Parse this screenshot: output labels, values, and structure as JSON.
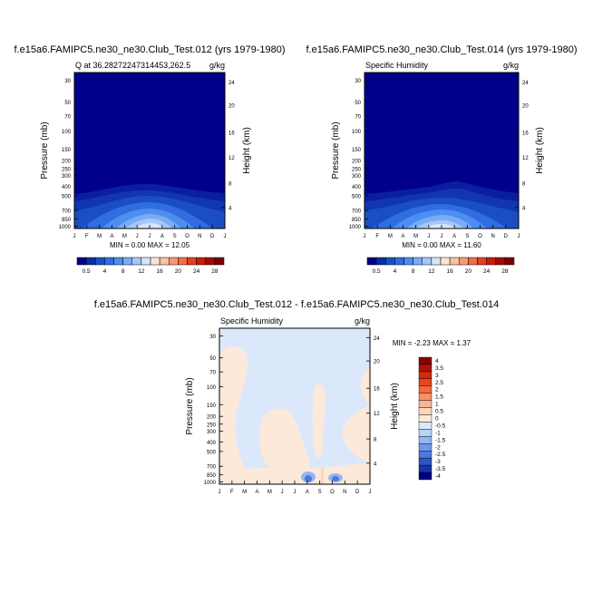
{
  "chart_data": [
    {
      "type": "heatmap",
      "title": "f.e15a6.FAMIPC5.ne30_ne30.Club_Test.012 (yrs 1979-1980)",
      "subtitle_left": "Q at 36.28272247314453,262.5",
      "subtitle_right": "g/kg",
      "ylabel": "Pressure (mb)",
      "ylabel_right": "Height (km)",
      "x_ticks": [
        "J",
        "F",
        "M",
        "A",
        "M",
        "J",
        "J",
        "A",
        "S",
        "O",
        "N",
        "D",
        "J"
      ],
      "y_ticks": [
        "30",
        "50",
        "70",
        "100",
        "150",
        "200",
        "250",
        "300",
        "400",
        "500",
        "700",
        "850",
        "1000"
      ],
      "y_ticks_right": [
        "24",
        "20",
        "16",
        "12",
        "8",
        "4"
      ],
      "stats": "MIN =   0.00 MAX =  12.05",
      "colorbar": {
        "labels": [
          "0.5",
          "4",
          "8",
          "12",
          "16",
          "20",
          "24",
          "28"
        ],
        "colors": [
          "#00008b",
          "#0a2d9f",
          "#1a4fc4",
          "#2f6de0",
          "#4d8ef0",
          "#79acf5",
          "#a6c8f8",
          "#d6e6fa",
          "#fbe3d2",
          "#f8c2a2",
          "#f49a73",
          "#ef6e46",
          "#e2401e",
          "#c81b0c",
          "#a10a05",
          "#7a0000"
        ]
      },
      "z_contours_note": "moisture increases toward surface, peak near Jul-Aug",
      "ylim": [
        1000,
        30
      ]
    },
    {
      "type": "heatmap",
      "title": "f.e15a6.FAMIPC5.ne30_ne30.Club_Test.014 (yrs 1979-1980)",
      "subtitle_left": "Specific Humidity",
      "subtitle_right": "g/kg",
      "ylabel": "Pressure (mb)",
      "ylabel_right": "Height (km)",
      "x_ticks": [
        "J",
        "F",
        "M",
        "A",
        "M",
        "J",
        "J",
        "A",
        "S",
        "O",
        "N",
        "D",
        "J"
      ],
      "y_ticks": [
        "30",
        "50",
        "70",
        "100",
        "150",
        "200",
        "250",
        "300",
        "400",
        "500",
        "700",
        "850",
        "1000"
      ],
      "y_ticks_right": [
        "24",
        "20",
        "16",
        "12",
        "8",
        "4"
      ],
      "stats": "MIN =   0.00 MAX =  11.60",
      "colorbar": {
        "labels": [
          "0.5",
          "4",
          "8",
          "12",
          "16",
          "20",
          "24",
          "28"
        ],
        "colors": [
          "#00008b",
          "#0a2d9f",
          "#1a4fc4",
          "#2f6de0",
          "#4d8ef0",
          "#79acf5",
          "#a6c8f8",
          "#d6e6fa",
          "#fbe3d2",
          "#f8c2a2",
          "#f49a73",
          "#ef6e46",
          "#e2401e",
          "#c81b0c",
          "#a10a05",
          "#7a0000"
        ]
      },
      "ylim": [
        1000,
        30
      ]
    },
    {
      "type": "heatmap",
      "title": "f.e15a6.FAMIPC5.ne30_ne30.Club_Test.012 - f.e15a6.FAMIPC5.ne30_ne30.Club_Test.014",
      "subtitle_left": "Specific Humidity",
      "subtitle_right": "g/kg",
      "ylabel": "Pressure (mb)",
      "ylabel_right": "Height (km)",
      "x_ticks": [
        "J",
        "F",
        "M",
        "A",
        "M",
        "J",
        "J",
        "A",
        "S",
        "O",
        "N",
        "D",
        "J"
      ],
      "y_ticks": [
        "30",
        "50",
        "70",
        "100",
        "150",
        "200",
        "250",
        "300",
        "400",
        "500",
        "700",
        "850",
        "1000"
      ],
      "y_ticks_right": [
        "24",
        "20",
        "16",
        "12",
        "8",
        "4"
      ],
      "stats": "MIN =  -2.23 MAX =   1.37",
      "colorbar": {
        "labels": [
          "4",
          "3.5",
          "3",
          "2.5",
          "2",
          "1.5",
          "1",
          "0.5",
          "0",
          "-0.5",
          "-1",
          "-1.5",
          "-2",
          "-2.5",
          "-3",
          "-3.5",
          "-4"
        ],
        "colors": [
          "#8b0000",
          "#b0120a",
          "#d02a10",
          "#e8461c",
          "#f26a3f",
          "#f69068",
          "#f9b594",
          "#fbd5bd",
          "#fde9d9",
          "#dbe8fb",
          "#b9d2f8",
          "#94b7f2",
          "#6f98ea",
          "#4d78dc",
          "#2d55c8",
          "#1535a8",
          "#000080"
        ]
      },
      "ylim": [
        1000,
        30
      ]
    }
  ]
}
